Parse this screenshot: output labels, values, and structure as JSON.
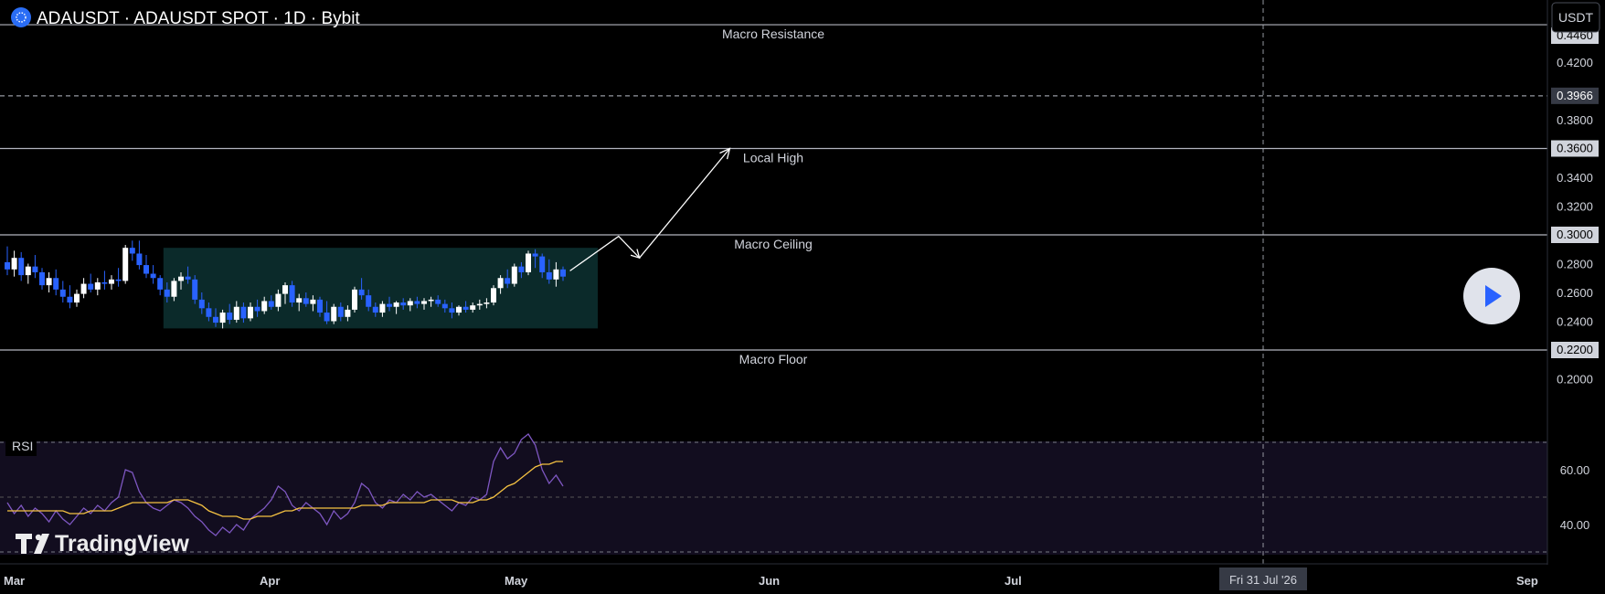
{
  "header": {
    "title": "ADAUSDT · ADAUSDT SPOT · 1D · Bybit",
    "currency_button": "USDT"
  },
  "levels": [
    {
      "label": "Macro Resistance",
      "price": 0.446,
      "price_text": "0.4460",
      "style": "solid"
    },
    {
      "label": "",
      "price": 0.3966,
      "price_text": "0.3966",
      "style": "dashed"
    },
    {
      "label": "Local High",
      "price": 0.36,
      "price_text": "0.3600",
      "style": "solid"
    },
    {
      "label": "Macro Ceiling",
      "price": 0.3,
      "price_text": "0.3000",
      "style": "solid"
    },
    {
      "label": "Macro Floor",
      "price": 0.22,
      "price_text": "0.2200",
      "style": "solid"
    }
  ],
  "price_axis": {
    "ticks": [
      "0.4200",
      "0.3800",
      "0.3400",
      "0.3200",
      "0.2800",
      "0.2600",
      "0.2400",
      "0.2000"
    ],
    "tick_values": [
      0.42,
      0.38,
      0.34,
      0.32,
      0.28,
      0.26,
      0.24,
      0.2
    ]
  },
  "time_axis": {
    "labels": [
      "Mar",
      "Apr",
      "May",
      "Jun",
      "Jul",
      "Sep"
    ],
    "crosshair_label": "Fri 31 Jul '26"
  },
  "rsi": {
    "label": "RSI",
    "ticks": [
      "60.00",
      "40.00"
    ],
    "tick_values": [
      60,
      40
    ],
    "upper_band": 70,
    "lower_band": 30,
    "mid": 50
  },
  "watermark": "TradingView",
  "colors": {
    "up": "#ffffff",
    "down": "#2962ff",
    "box": "#0b2a2a",
    "rsi_line": "#7e57c2",
    "rsi_ma": "#f5c242",
    "rsi_bg": "#120d1f",
    "level_line": "#b2b5be"
  },
  "chart_data": {
    "type": "candlestick",
    "symbol": "ADAUSDT",
    "interval": "1D",
    "start_date": "Mar 1",
    "ylim": [
      0.19,
      0.45
    ],
    "candles": [
      [
        0.281,
        0.292,
        0.272,
        0.276
      ],
      [
        0.276,
        0.289,
        0.271,
        0.284
      ],
      [
        0.284,
        0.288,
        0.268,
        0.272
      ],
      [
        0.272,
        0.28,
        0.266,
        0.278
      ],
      [
        0.278,
        0.286,
        0.27,
        0.274
      ],
      [
        0.274,
        0.277,
        0.262,
        0.265
      ],
      [
        0.265,
        0.274,
        0.26,
        0.27
      ],
      [
        0.27,
        0.276,
        0.258,
        0.262
      ],
      [
        0.262,
        0.268,
        0.253,
        0.257
      ],
      [
        0.257,
        0.265,
        0.249,
        0.253
      ],
      [
        0.253,
        0.262,
        0.25,
        0.259
      ],
      [
        0.259,
        0.27,
        0.256,
        0.266
      ],
      [
        0.266,
        0.273,
        0.26,
        0.262
      ],
      [
        0.262,
        0.27,
        0.258,
        0.267
      ],
      [
        0.267,
        0.275,
        0.262,
        0.266
      ],
      [
        0.266,
        0.272,
        0.262,
        0.269
      ],
      [
        0.269,
        0.277,
        0.264,
        0.268
      ],
      [
        0.268,
        0.293,
        0.266,
        0.291
      ],
      [
        0.291,
        0.296,
        0.282,
        0.287
      ],
      [
        0.287,
        0.296,
        0.276,
        0.279
      ],
      [
        0.279,
        0.286,
        0.27,
        0.273
      ],
      [
        0.273,
        0.279,
        0.266,
        0.27
      ],
      [
        0.27,
        0.272,
        0.258,
        0.262
      ],
      [
        0.262,
        0.267,
        0.253,
        0.257
      ],
      [
        0.257,
        0.27,
        0.254,
        0.268
      ],
      [
        0.268,
        0.274,
        0.262,
        0.271
      ],
      [
        0.271,
        0.278,
        0.266,
        0.269
      ],
      [
        0.269,
        0.272,
        0.252,
        0.255
      ],
      [
        0.255,
        0.26,
        0.245,
        0.249
      ],
      [
        0.249,
        0.253,
        0.24,
        0.243
      ],
      [
        0.243,
        0.249,
        0.236,
        0.239
      ],
      [
        0.239,
        0.248,
        0.235,
        0.246
      ],
      [
        0.246,
        0.252,
        0.238,
        0.241
      ],
      [
        0.241,
        0.254,
        0.239,
        0.25
      ],
      [
        0.25,
        0.253,
        0.239,
        0.242
      ],
      [
        0.242,
        0.253,
        0.24,
        0.25
      ],
      [
        0.25,
        0.255,
        0.243,
        0.247
      ],
      [
        0.247,
        0.257,
        0.245,
        0.254
      ],
      [
        0.254,
        0.258,
        0.248,
        0.25
      ],
      [
        0.25,
        0.262,
        0.247,
        0.259
      ],
      [
        0.259,
        0.267,
        0.252,
        0.265
      ],
      [
        0.265,
        0.268,
        0.25,
        0.253
      ],
      [
        0.253,
        0.259,
        0.247,
        0.256
      ],
      [
        0.256,
        0.26,
        0.25,
        0.252
      ],
      [
        0.252,
        0.258,
        0.247,
        0.255
      ],
      [
        0.255,
        0.257,
        0.243,
        0.246
      ],
      [
        0.246,
        0.254,
        0.238,
        0.24
      ],
      [
        0.24,
        0.252,
        0.238,
        0.25
      ],
      [
        0.25,
        0.253,
        0.24,
        0.243
      ],
      [
        0.243,
        0.251,
        0.24,
        0.248
      ],
      [
        0.248,
        0.264,
        0.246,
        0.262
      ],
      [
        0.262,
        0.27,
        0.255,
        0.258
      ],
      [
        0.258,
        0.262,
        0.247,
        0.25
      ],
      [
        0.25,
        0.253,
        0.243,
        0.246
      ],
      [
        0.246,
        0.254,
        0.243,
        0.252
      ],
      [
        0.252,
        0.257,
        0.247,
        0.25
      ],
      [
        0.25,
        0.254,
        0.245,
        0.253
      ],
      [
        0.253,
        0.256,
        0.248,
        0.251
      ],
      [
        0.251,
        0.256,
        0.247,
        0.254
      ],
      [
        0.254,
        0.257,
        0.249,
        0.252
      ],
      [
        0.252,
        0.256,
        0.248,
        0.254
      ],
      [
        0.254,
        0.257,
        0.25,
        0.255
      ],
      [
        0.255,
        0.258,
        0.25,
        0.252
      ],
      [
        0.252,
        0.255,
        0.246,
        0.249
      ],
      [
        0.249,
        0.253,
        0.242,
        0.246
      ],
      [
        0.246,
        0.251,
        0.244,
        0.25
      ],
      [
        0.25,
        0.254,
        0.246,
        0.248
      ],
      [
        0.248,
        0.253,
        0.246,
        0.251
      ],
      [
        0.251,
        0.255,
        0.248,
        0.252
      ],
      [
        0.252,
        0.256,
        0.249,
        0.253
      ],
      [
        0.253,
        0.265,
        0.251,
        0.263
      ],
      [
        0.263,
        0.272,
        0.259,
        0.27
      ],
      [
        0.27,
        0.276,
        0.263,
        0.266
      ],
      [
        0.266,
        0.28,
        0.264,
        0.278
      ],
      [
        0.278,
        0.281,
        0.27,
        0.274
      ],
      [
        0.274,
        0.289,
        0.272,
        0.287
      ],
      [
        0.287,
        0.29,
        0.277,
        0.285
      ],
      [
        0.285,
        0.287,
        0.27,
        0.274
      ],
      [
        0.274,
        0.283,
        0.266,
        0.269
      ],
      [
        0.269,
        0.281,
        0.264,
        0.276
      ],
      [
        0.276,
        0.278,
        0.268,
        0.271
      ]
    ],
    "consolidation_box": {
      "start_index": 23,
      "end_index": 85,
      "high": 0.291,
      "low": 0.235
    },
    "projection_path": [
      [
        81,
        0.275
      ],
      [
        88,
        0.299
      ],
      [
        91,
        0.284
      ],
      [
        104,
        0.36
      ]
    ],
    "rsi_values": [
      48,
      44,
      47,
      43,
      46,
      44,
      41,
      45,
      42,
      40,
      43,
      46,
      44,
      47,
      45,
      48,
      50,
      60,
      59,
      52,
      48,
      46,
      45,
      47,
      49,
      48,
      46,
      43,
      41,
      38,
      36,
      39,
      37,
      40,
      38,
      42,
      44,
      46,
      49,
      54,
      52,
      47,
      45,
      48,
      46,
      44,
      40,
      45,
      42,
      44,
      48,
      55,
      53,
      48,
      46,
      49,
      48,
      51,
      49,
      52,
      50,
      51,
      49,
      47,
      45,
      48,
      47,
      50,
      49,
      51,
      63,
      68,
      64,
      66,
      71,
      73,
      69,
      60,
      55,
      58,
      54
    ],
    "rsi_ma": [
      45,
      45,
      45,
      45,
      45,
      45,
      45,
      45,
      45,
      44,
      44,
      44,
      45,
      45,
      45,
      45,
      46,
      47,
      48,
      48,
      48,
      48,
      48,
      48,
      49,
      49,
      49,
      48,
      47,
      45,
      44,
      43,
      43,
      43,
      42,
      42,
      43,
      43,
      43,
      44,
      45,
      45,
      46,
      46,
      46,
      46,
      46,
      46,
      46,
      46,
      46,
      47,
      47,
      47,
      47,
      48,
      48,
      48,
      48,
      48,
      48,
      49,
      49,
      49,
      49,
      48,
      48,
      48,
      49,
      49,
      50,
      52,
      54,
      55,
      57,
      59,
      61,
      62,
      62,
      63,
      63
    ],
    "rsi_ylim": [
      20,
      80
    ]
  }
}
